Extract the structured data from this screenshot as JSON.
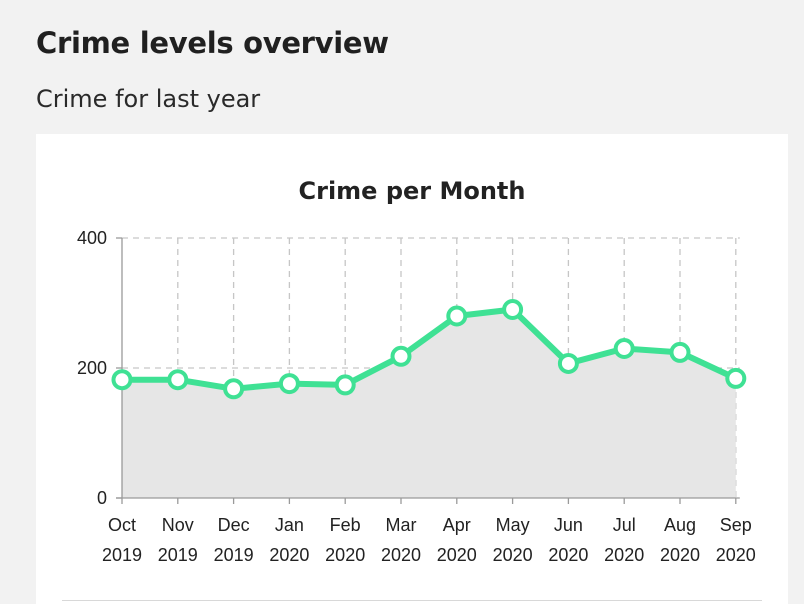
{
  "page": {
    "title": "Crime levels overview",
    "subtitle": "Crime for last year"
  },
  "colors": {
    "line": "#3fe194",
    "area": "#e6e6e6",
    "grid": "#c6c6c6",
    "axis": "#9a9a9a",
    "point_fill": "#ffffff"
  },
  "chart_data": {
    "type": "area",
    "title": "Crime per Month",
    "xlabel": "",
    "ylabel": "",
    "categories": [
      [
        "Oct",
        "2019"
      ],
      [
        "Nov",
        "2019"
      ],
      [
        "Dec",
        "2019"
      ],
      [
        "Jan",
        "2020"
      ],
      [
        "Feb",
        "2020"
      ],
      [
        "Mar",
        "2020"
      ],
      [
        "Apr",
        "2020"
      ],
      [
        "May",
        "2020"
      ],
      [
        "Jun",
        "2020"
      ],
      [
        "Jul",
        "2020"
      ],
      [
        "Aug",
        "2020"
      ],
      [
        "Sep",
        "2020"
      ]
    ],
    "values": [
      182,
      182,
      168,
      176,
      174,
      218,
      280,
      290,
      207,
      230,
      224,
      184
    ],
    "ylim": [
      0,
      400
    ],
    "y_ticks": [
      "0",
      "200",
      "400"
    ],
    "grid": true,
    "grid_style": "dashed",
    "legend": "none"
  }
}
